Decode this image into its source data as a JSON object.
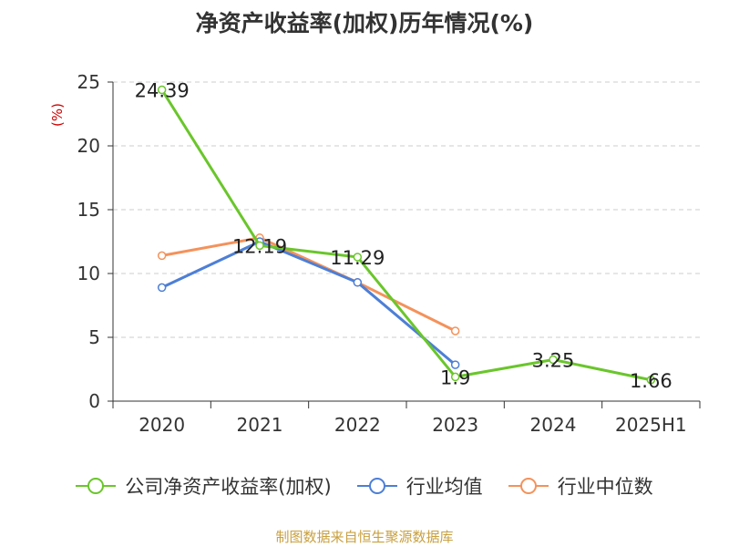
{
  "title": "净资产收益率(加权)历年情况(%)",
  "source_note": "制图数据来自恒生聚源数据库",
  "colors": {
    "company": "#6ac62b",
    "industry_avg": "#4d7fd6",
    "industry_median": "#f4925b",
    "grid": "#cccccc",
    "axis": "#333333",
    "ylabel": "#cc0000"
  },
  "chart_data": {
    "type": "line",
    "title": "净资产收益率(加权)历年情况(%)",
    "ylabel": "(%)",
    "ylim": [
      0,
      25
    ],
    "yticks": [
      0,
      5,
      10,
      15,
      20,
      25
    ],
    "categories": [
      "2020",
      "2021",
      "2022",
      "2023",
      "2024",
      "2025H1"
    ],
    "grid": true,
    "legend": "bottom",
    "series": [
      {
        "name": "公司净资产收益率(加权)",
        "values": [
          24.39,
          12.19,
          11.29,
          1.9,
          3.25,
          1.66
        ],
        "labels": true
      },
      {
        "name": "行业均值",
        "values": [
          8.9,
          12.5,
          9.3,
          2.85,
          null,
          null
        ],
        "labels": false
      },
      {
        "name": "行业中位数",
        "values": [
          11.4,
          12.8,
          9.3,
          5.5,
          null,
          null
        ],
        "labels": false
      }
    ]
  }
}
